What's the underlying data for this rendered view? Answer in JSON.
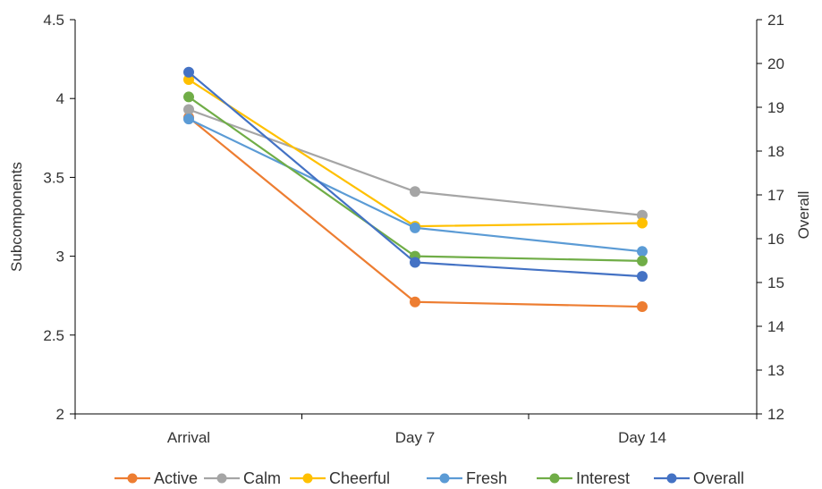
{
  "chart_data": {
    "type": "line",
    "categories": [
      "Arrival",
      "Day 7",
      "Day 14"
    ],
    "ylabel": "Subcomponents",
    "y2label": "Overall",
    "ylim": [
      2,
      4.5
    ],
    "yticks": [
      "2",
      "2.5",
      "3",
      "3.5",
      "4",
      "4.5"
    ],
    "y2lim": [
      12,
      21
    ],
    "y2ticks": [
      "12",
      "13",
      "14",
      "15",
      "16",
      "17",
      "18",
      "19",
      "20",
      "21"
    ],
    "legend_position": "bottom",
    "grid": false,
    "series": [
      {
        "name": "Active",
        "axis": "left",
        "color": "#ED7D31",
        "values": [
          3.88,
          2.71,
          2.68
        ]
      },
      {
        "name": "Calm",
        "axis": "left",
        "color": "#A5A5A5",
        "values": [
          3.93,
          3.41,
          3.26
        ]
      },
      {
        "name": "Cheerful",
        "axis": "left",
        "color": "#FFC000",
        "values": [
          4.12,
          3.19,
          3.21
        ]
      },
      {
        "name": "Fresh",
        "axis": "left",
        "color": "#5B9BD5",
        "values": [
          3.87,
          3.18,
          3.03
        ]
      },
      {
        "name": "Interest",
        "axis": "left",
        "color": "#70AD47",
        "values": [
          4.01,
          3.0,
          2.97
        ]
      },
      {
        "name": "Overall",
        "axis": "right",
        "color": "#4472C4",
        "values": [
          19.8,
          15.46,
          15.14
        ]
      }
    ]
  }
}
